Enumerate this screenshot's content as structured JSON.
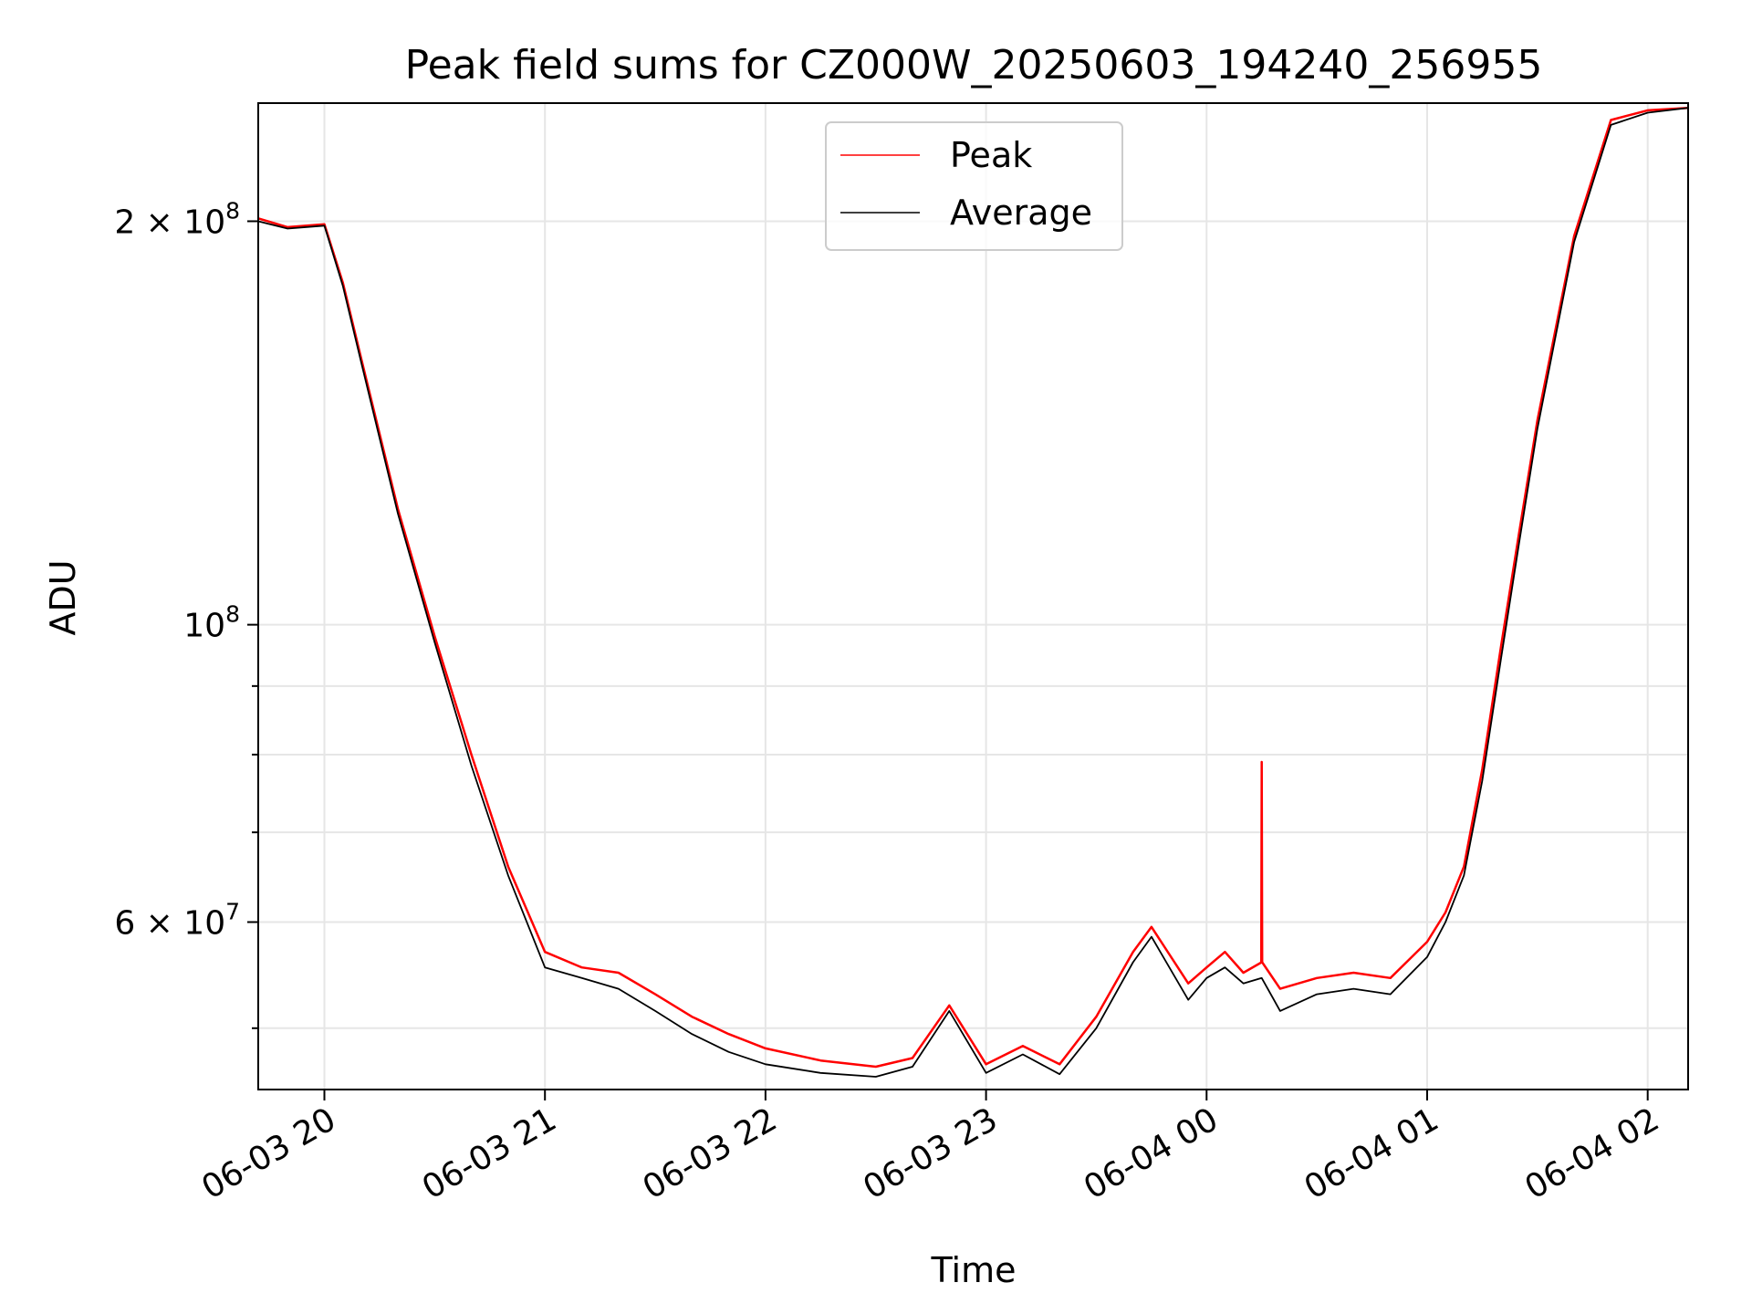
{
  "chart_data": {
    "type": "line",
    "title": "Peak field sums for CZ000W_20250603_194240_256955",
    "xlabel": "Time",
    "ylabel": "ADU",
    "yscale": "log",
    "grid": true,
    "legend_position": "top-center",
    "xlim": [
      "06-03 19:42",
      "06-04 02:11"
    ],
    "ylim": [
      45000000,
      245000000
    ],
    "x_ticks": [
      "06-03 20",
      "06-03 21",
      "06-03 22",
      "06-03 23",
      "06-04 00",
      "06-04 01",
      "06-04 02"
    ],
    "y_major_ticks": [
      {
        "value": 60000000,
        "label_base": "6 × 10",
        "label_exp": "7"
      },
      {
        "value": 100000000,
        "label_base": "10",
        "label_exp": "8"
      },
      {
        "value": 200000000,
        "label_base": "2 × 10",
        "label_exp": "8"
      }
    ],
    "y_minor_ticks": [
      50000000,
      70000000,
      80000000,
      90000000
    ],
    "x_values": [
      "06-03 19:42",
      "06-03 19:50",
      "06-03 20:00",
      "06-03 20:05",
      "06-03 20:10",
      "06-03 20:20",
      "06-03 20:30",
      "06-03 20:40",
      "06-03 20:50",
      "06-03 21:00",
      "06-03 21:10",
      "06-03 21:20",
      "06-03 21:30",
      "06-03 21:40",
      "06-03 21:50",
      "06-03 22:00",
      "06-03 22:15",
      "06-03 22:30",
      "06-03 22:40",
      "06-03 22:50",
      "06-03 23:00",
      "06-03 23:10",
      "06-03 23:20",
      "06-03 23:30",
      "06-03 23:40",
      "06-03 23:45",
      "06-03 23:55",
      "06-04 00:00",
      "06-04 00:05",
      "06-04 00:10",
      "06-04 00:15",
      "06-04 00:20",
      "06-04 00:30",
      "06-04 00:40",
      "06-04 00:50",
      "06-04 01:00",
      "06-04 01:05",
      "06-04 01:10",
      "06-04 01:15",
      "06-04 01:20",
      "06-04 01:25",
      "06-04 01:30",
      "06-04 01:40",
      "06-04 01:50",
      "06-04 02:00",
      "06-04 02:11"
    ],
    "series": [
      {
        "name": "Peak",
        "color": "#ff0000",
        "values": [
          201000000,
          198000000,
          199000000,
          180000000,
          158000000,
          122000000,
          98000000,
          80000000,
          66000000,
          57000000,
          55500000,
          55000000,
          53000000,
          51000000,
          49500000,
          48300000,
          47300000,
          46800000,
          47500000,
          52000000,
          47000000,
          48500000,
          47000000,
          51000000,
          57000000,
          59500000,
          54000000,
          55500000,
          57000000,
          55000000,
          56000000,
          53500000,
          54500000,
          55000000,
          54500000,
          58000000,
          61000000,
          66000000,
          78000000,
          96000000,
          117000000,
          142000000,
          195000000,
          238000000,
          242000000,
          243000000
        ],
        "spike": {
          "x": "06-04 00:15",
          "value": 79000000
        }
      },
      {
        "name": "Average",
        "color": "#000000",
        "values": [
          200000000,
          197500000,
          198500000,
          179000000,
          157000000,
          121000000,
          97000000,
          78500000,
          65000000,
          55500000,
          54500000,
          53500000,
          51500000,
          49500000,
          48000000,
          47000000,
          46300000,
          46000000,
          46800000,
          51500000,
          46300000,
          47800000,
          46200000,
          50000000,
          56000000,
          58500000,
          52500000,
          54500000,
          55500000,
          54000000,
          54500000,
          51500000,
          53000000,
          53500000,
          53000000,
          56500000,
          60000000,
          65000000,
          76500000,
          94000000,
          115000000,
          140000000,
          193000000,
          236000000,
          241000000,
          243000000
        ]
      }
    ]
  }
}
